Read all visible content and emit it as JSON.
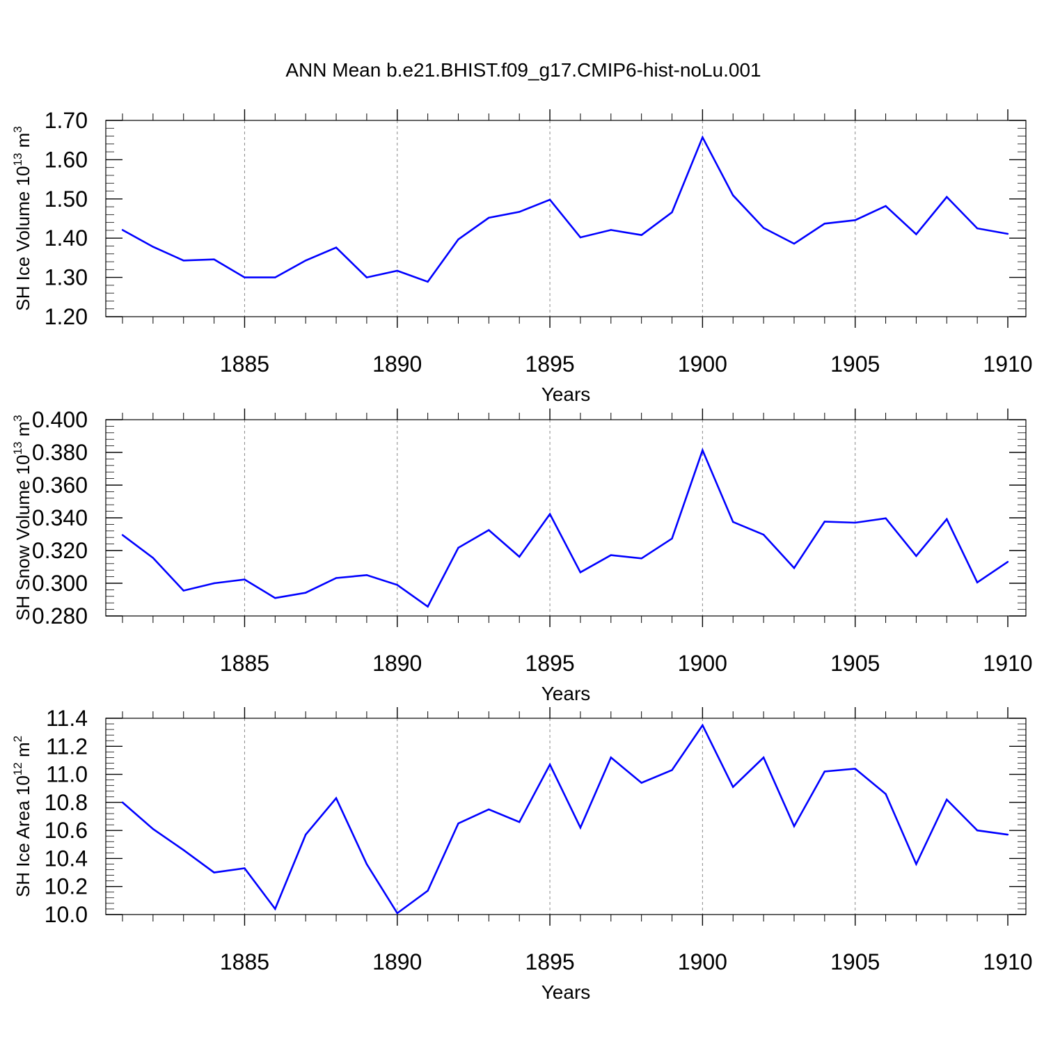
{
  "title": "ANN Mean b.e21.BHIST.f09_g17.CMIP6-hist-noLu.001",
  "line_color": "#0000ff",
  "grid_color": "#888888",
  "chart_data": [
    {
      "type": "line",
      "ylabel": "SH Ice Volume 10",
      "ylabel_exp": "13",
      "ylabel_unit": " m",
      "ylabel_unit_exp": "3",
      "xlabel": "Years",
      "xlim": [
        1881,
        1910
      ],
      "ylim": [
        1.2,
        1.7
      ],
      "y_ticks": [
        "1.20",
        "1.30",
        "1.40",
        "1.50",
        "1.60",
        "1.70"
      ],
      "y_tick_values": [
        1.2,
        1.3,
        1.4,
        1.5,
        1.6,
        1.7
      ],
      "x_ticks": [
        "1885",
        "1890",
        "1895",
        "1900",
        "1905",
        "1910"
      ],
      "x_tick_values": [
        1885,
        1890,
        1895,
        1900,
        1905,
        1910
      ],
      "y_minor_step": 0.02,
      "grid": "vertical dashed at major ticks",
      "x": [
        1881,
        1882,
        1883,
        1884,
        1885,
        1886,
        1887,
        1888,
        1889,
        1890,
        1891,
        1892,
        1893,
        1894,
        1895,
        1896,
        1897,
        1898,
        1899,
        1900,
        1901,
        1902,
        1903,
        1904,
        1905,
        1906,
        1907,
        1908,
        1909,
        1910
      ],
      "values": [
        1.421,
        1.378,
        1.343,
        1.346,
        1.3,
        1.3,
        1.343,
        1.376,
        1.3,
        1.317,
        1.289,
        1.397,
        1.452,
        1.467,
        1.498,
        1.402,
        1.421,
        1.408,
        1.466,
        1.657,
        1.509,
        1.426,
        1.386,
        1.437,
        1.446,
        1.482,
        1.41,
        1.505,
        1.425,
        1.411
      ]
    },
    {
      "type": "line",
      "ylabel": "SH Snow Volume 10",
      "ylabel_exp": "13",
      "ylabel_unit": " m",
      "ylabel_unit_exp": "3",
      "xlabel": "Years",
      "xlim": [
        1881,
        1910
      ],
      "ylim": [
        0.28,
        0.4
      ],
      "y_ticks": [
        "0.280",
        "0.300",
        "0.320",
        "0.340",
        "0.360",
        "0.380",
        "0.400"
      ],
      "y_tick_values": [
        0.28,
        0.3,
        0.32,
        0.34,
        0.36,
        0.38,
        0.4
      ],
      "x_ticks": [
        "1885",
        "1890",
        "1895",
        "1900",
        "1905",
        "1910"
      ],
      "x_tick_values": [
        1885,
        1890,
        1895,
        1900,
        1905,
        1910
      ],
      "y_minor_step": 0.004,
      "grid": "vertical dashed at major ticks",
      "x": [
        1881,
        1882,
        1883,
        1884,
        1885,
        1886,
        1887,
        1888,
        1889,
        1890,
        1891,
        1892,
        1893,
        1894,
        1895,
        1896,
        1897,
        1898,
        1899,
        1900,
        1901,
        1902,
        1903,
        1904,
        1905,
        1906,
        1907,
        1908,
        1909,
        1910
      ],
      "values": [
        0.3295,
        0.3155,
        0.2955,
        0.3,
        0.3023,
        0.291,
        0.2942,
        0.3032,
        0.305,
        0.299,
        0.2857,
        0.3217,
        0.3325,
        0.3162,
        0.3423,
        0.3067,
        0.3172,
        0.3152,
        0.3273,
        0.3813,
        0.3375,
        0.3297,
        0.3093,
        0.3377,
        0.337,
        0.3397,
        0.3167,
        0.3392,
        0.3005,
        0.3131
      ]
    },
    {
      "type": "line",
      "ylabel": "SH Ice Area 10",
      "ylabel_exp": "12",
      "ylabel_unit": " m",
      "ylabel_unit_exp": "2",
      "xlabel": "Years",
      "xlim": [
        1881,
        1910
      ],
      "ylim": [
        10.0,
        11.4
      ],
      "y_ticks": [
        "10.0",
        "10.2",
        "10.4",
        "10.6",
        "10.8",
        "11.0",
        "11.2",
        "11.4"
      ],
      "y_tick_values": [
        10.0,
        10.2,
        10.4,
        10.6,
        10.8,
        11.0,
        11.2,
        11.4
      ],
      "x_ticks": [
        "1885",
        "1890",
        "1895",
        "1900",
        "1905",
        "1910"
      ],
      "x_tick_values": [
        1885,
        1890,
        1895,
        1900,
        1905,
        1910
      ],
      "y_minor_step": 0.04,
      "grid": "vertical dashed at major ticks",
      "x": [
        1881,
        1882,
        1883,
        1884,
        1885,
        1886,
        1887,
        1888,
        1889,
        1890,
        1891,
        1892,
        1893,
        1894,
        1895,
        1896,
        1897,
        1898,
        1899,
        1900,
        1901,
        1902,
        1903,
        1904,
        1905,
        1906,
        1907,
        1908,
        1909,
        1910
      ],
      "values": [
        10.8,
        10.61,
        10.46,
        10.3,
        10.33,
        10.04,
        10.57,
        10.83,
        10.36,
        10.01,
        10.17,
        10.65,
        10.75,
        10.66,
        11.07,
        10.62,
        11.12,
        10.94,
        11.03,
        11.35,
        10.91,
        11.12,
        10.63,
        11.02,
        11.04,
        10.86,
        10.36,
        10.82,
        10.6,
        10.57
      ]
    }
  ]
}
